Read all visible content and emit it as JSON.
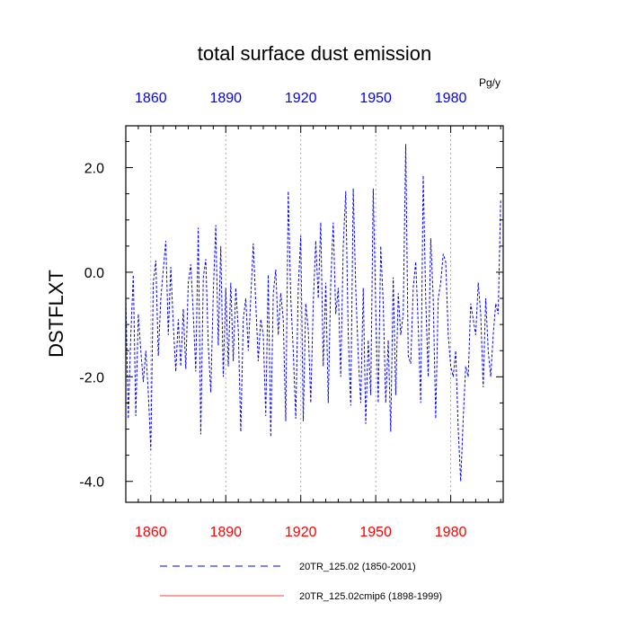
{
  "chart_data": {
    "type": "line",
    "title": "total surface dust emission",
    "ylabel": "DSTFLXT",
    "units": "Pg/y",
    "xlim": [
      1850,
      2001
    ],
    "ylim": [
      -4.4,
      2.8
    ],
    "x_ticks": [
      1860,
      1890,
      1920,
      1950,
      1980
    ],
    "x_tick_labels": [
      "1860",
      "1890",
      "1920",
      "1950",
      "1980"
    ],
    "y_ticks": [
      2.0,
      0.0,
      -2.0,
      -4.0
    ],
    "y_tick_labels": [
      "2.0",
      "0.0",
      "-2.0",
      "-4.0"
    ],
    "grid": "vertical dotted at major x ticks",
    "colors": {
      "top_axis": "#0000ff",
      "bottom_axis": "#ff0000",
      "series1": "#0000ff",
      "series2": "#ff0000"
    },
    "series": [
      {
        "name": "20TR_125.02 (1850-2001)",
        "style": "dashed",
        "color": "#0000ff",
        "start_year": 1850,
        "values": [
          -0.5,
          -2.8,
          -1.2,
          -0.05,
          -2.75,
          -0.8,
          -1.5,
          -2.1,
          -1.5,
          -2.3,
          -3.4,
          -0.2,
          0.22,
          -1.6,
          -0.5,
          0.05,
          0.6,
          -1.2,
          0.1,
          -1.0,
          -1.9,
          -0.9,
          -1.8,
          -0.7,
          -1.85,
          -0.2,
          0.15,
          -0.8,
          -1.9,
          0.85,
          -3.1,
          -0.1,
          0.25,
          -1.4,
          -2.3,
          -0.4,
          0.9,
          -1.4,
          0.5,
          -2.0,
          -0.3,
          -1.8,
          -0.2,
          -1.7,
          -0.3,
          -1.1,
          -3.05,
          -0.9,
          -0.5,
          -1.5,
          -0.5,
          0.55,
          -0.6,
          -1.7,
          -0.9,
          -1.2,
          -2.75,
          -0.05,
          -3.15,
          -0.4,
          0.05,
          -1.2,
          -0.4,
          -0.9,
          -2.85,
          1.55,
          -0.5,
          -1.5,
          -2.8,
          -0.3,
          0.7,
          -2.85,
          -0.6,
          -1.1,
          -2.5,
          -0.6,
          0.6,
          -0.5,
          0.95,
          -1.8,
          -0.2,
          -2.5,
          -0.2,
          0.95,
          -0.8,
          -0.3,
          -2.0,
          0.5,
          1.55,
          -1.2,
          -2.55,
          1.6,
          -0.3,
          -1.6,
          -2.5,
          -0.3,
          -2.9,
          -1.3,
          -2.35,
          1.6,
          -0.7,
          -2.5,
          0.5,
          -0.6,
          -2.5,
          -1.3,
          -3.05,
          -0.1,
          -2.35,
          -0.4,
          -1.2,
          -0.8,
          2.45,
          -1.6,
          -1.75,
          -0.3,
          0.2,
          -1.0,
          -2.5,
          1.85,
          -0.5,
          -2.0,
          0.65,
          -0.5,
          -2.8,
          -0.5,
          -0.2,
          0.35,
          0.2,
          -1.2,
          -1.8,
          -2.0,
          -1.5,
          -3.0,
          -4.0,
          -2.8,
          -1.8,
          -2.0,
          -0.6,
          -0.9,
          -1.2,
          -0.2,
          -0.8,
          -2.2,
          -0.5,
          -1.5,
          -2.0,
          -1.2,
          -0.6,
          -0.8,
          1.4
        ]
      },
      {
        "name": "20TR_125.02cmip6 (1898-1999)",
        "style": "solid",
        "color": "#ff0000",
        "start_year": 1898,
        "values": []
      }
    ]
  }
}
